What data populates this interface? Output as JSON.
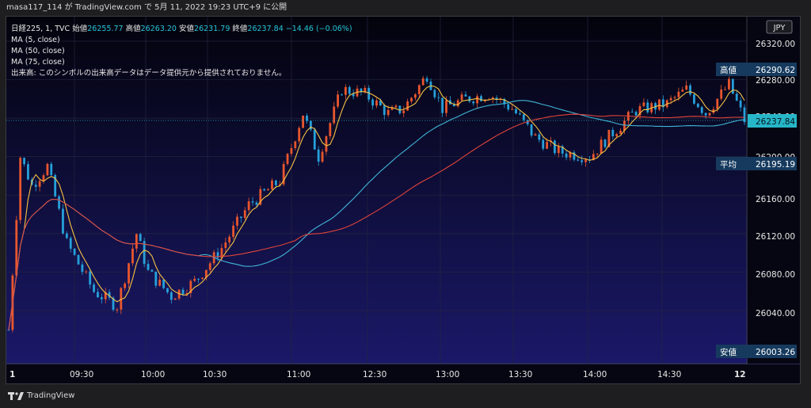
{
  "header": {
    "user": "masa117_114",
    "platform_text": "が TradingView.com で",
    "date": "5月 11, 2022",
    "time": "19:23 UTC+9",
    "published": "に公開"
  },
  "legend": {
    "symbol": "日経225, 1, TVC",
    "open_label": "始値",
    "open_value": "26255.77",
    "high_label": "高値",
    "high_value": "26263.20",
    "low_label": "安値",
    "low_value": "26231.79",
    "close_label": "終値",
    "close_value": "26237.84",
    "change": "−14.46 (−0.06%)",
    "ma5": "MA (5, close)",
    "ma50": "MA (50, close)",
    "ma75": "MA (75, close)",
    "volume_note": "出来高: このシンボルの出来高データはデータ提供元から提供されておりません。"
  },
  "price_axis": {
    "currency": "JPY",
    "ticks": [
      "26320.00",
      "26280.00",
      "26240.00",
      "26200.00",
      "26160.00",
      "26120.00",
      "26080.00",
      "26040.00"
    ]
  },
  "price_labels": {
    "high_label": "高値",
    "high_value": "26290.62",
    "last_value": "26237.84",
    "avg_label": "平均",
    "avg_value": "26195.19",
    "low_label": "安値",
    "low_value": "26003.26"
  },
  "time_axis": {
    "ticks": [
      "1",
      "09:30",
      "10:00",
      "10:30",
      "11:00",
      "12:30",
      "13:00",
      "13:30",
      "14:00",
      "14:30",
      "12"
    ]
  },
  "footer": {
    "brand": "TradingView"
  },
  "colors": {
    "up": "#e8562e",
    "down": "#26a0da",
    "ma5": "#f5c242",
    "ma50": "#3fb6d8",
    "ma75": "#e0443a",
    "high_label_bg": "#163a5e",
    "last_label_bg": "#26b6c8"
  },
  "chart_data": {
    "type": "candlestick",
    "symbol": "日経225",
    "interval": "1",
    "ylim": [
      26000,
      26330
    ],
    "x_ticks": [
      "1",
      "09:30",
      "10:00",
      "10:30",
      "11:00",
      "12:30",
      "13:00",
      "13:30",
      "14:00",
      "14:30",
      "12"
    ],
    "close_path_approx": [
      [
        0,
        26020
      ],
      [
        3,
        26200
      ],
      [
        6,
        26170
      ],
      [
        10,
        26190
      ],
      [
        15,
        26110
      ],
      [
        22,
        26060
      ],
      [
        28,
        26045
      ],
      [
        33,
        26120
      ],
      [
        36,
        26080
      ],
      [
        42,
        26055
      ],
      [
        48,
        26070
      ],
      [
        55,
        26105
      ],
      [
        62,
        26150
      ],
      [
        70,
        26175
      ],
      [
        76,
        26245
      ],
      [
        80,
        26200
      ],
      [
        86,
        26270
      ],
      [
        92,
        26265
      ],
      [
        98,
        26245
      ],
      [
        102,
        26250
      ],
      [
        108,
        26285
      ],
      [
        112,
        26250
      ],
      [
        118,
        26260
      ],
      [
        124,
        26265
      ],
      [
        130,
        26250
      ],
      [
        136,
        26220
      ],
      [
        142,
        26205
      ],
      [
        150,
        26200
      ],
      [
        156,
        26225
      ],
      [
        162,
        26248
      ],
      [
        170,
        26255
      ],
      [
        175,
        26270
      ],
      [
        180,
        26245
      ],
      [
        186,
        26275
      ],
      [
        190,
        26237.84
      ]
    ],
    "series": [
      {
        "name": "MA (5, close)"
      },
      {
        "name": "MA (50, close)"
      },
      {
        "name": "MA (75, close)"
      }
    ],
    "last_price": 26237.84,
    "session_high": 26290.62,
    "session_avg": 26195.19,
    "session_low": 26003.26
  }
}
